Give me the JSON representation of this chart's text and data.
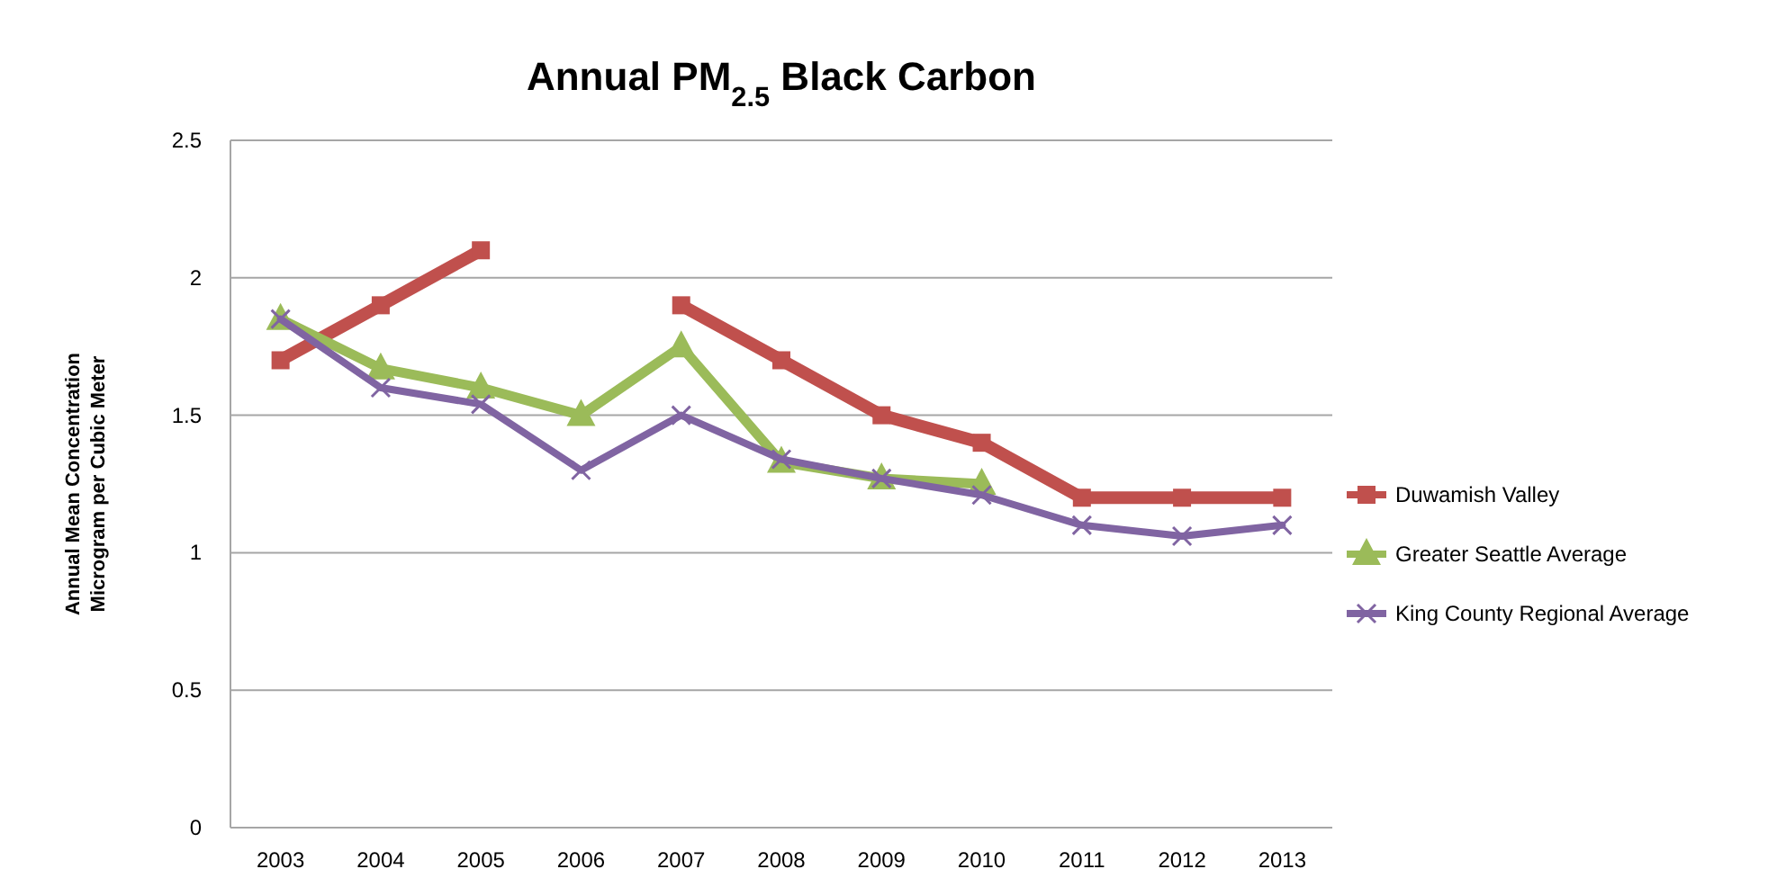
{
  "chart_data": {
    "type": "line",
    "title": "Annual PM$_{2.5}$ Black Carbon",
    "ylabel": "Annual Mean Concentration\nMicrogram per Cubic Meter",
    "categories": [
      "2003",
      "2004",
      "2005",
      "2006",
      "2007",
      "2008",
      "2009",
      "2010",
      "2011",
      "2012",
      "2013"
    ],
    "series": [
      {
        "name": "Duwamish Valley",
        "color": "#c0504d",
        "marker": "square",
        "values": [
          1.7,
          1.9,
          2.1,
          null,
          1.9,
          1.7,
          1.5,
          1.4,
          1.2,
          1.2,
          1.2
        ]
      },
      {
        "name": "Greater Seattle Average",
        "color": "#9bbb59",
        "marker": "triangle",
        "values": [
          1.85,
          1.67,
          1.6,
          1.5,
          1.75,
          1.33,
          1.27,
          1.25,
          null,
          null,
          null
        ]
      },
      {
        "name": "King County Regional Average",
        "color": "#8064a2",
        "marker": "cross",
        "values": [
          1.85,
          1.6,
          1.54,
          1.3,
          1.5,
          1.34,
          1.27,
          1.21,
          1.1,
          1.06,
          1.1
        ]
      }
    ],
    "ylim": [
      0,
      2.5
    ],
    "yticks": [
      0,
      0.5,
      1,
      1.5,
      2,
      2.5
    ],
    "grid": "y",
    "legend": "right",
    "line_style": "solid"
  }
}
